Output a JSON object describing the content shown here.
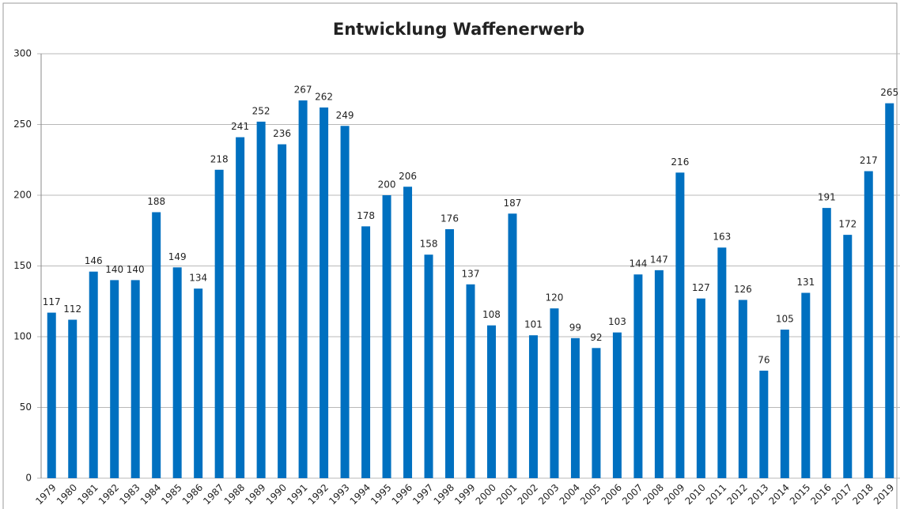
{
  "chart_data": {
    "type": "bar",
    "title": "Entwicklung Waffenerwerb",
    "categories": [
      "1979",
      "1980",
      "1981",
      "1982",
      "1983",
      "1984",
      "1985",
      "1986",
      "1987",
      "1988",
      "1989",
      "1990",
      "1991",
      "1992",
      "1993",
      "1994",
      "1995",
      "1996",
      "1997",
      "1998",
      "1999",
      "2000",
      "2001",
      "2002",
      "2003",
      "2004",
      "2005",
      "2006",
      "2007",
      "2008",
      "2009",
      "2010",
      "2011",
      "2012",
      "2013",
      "2014",
      "2015",
      "2016",
      "2017",
      "2018",
      "2019"
    ],
    "values": [
      117,
      112,
      146,
      140,
      140,
      188,
      149,
      134,
      218,
      241,
      252,
      236,
      267,
      262,
      249,
      178,
      200,
      206,
      158,
      176,
      137,
      108,
      187,
      101,
      120,
      99,
      92,
      103,
      144,
      147,
      216,
      127,
      163,
      126,
      76,
      105,
      131,
      191,
      172,
      217,
      265
    ],
    "color": "#0070c0",
    "ylim": [
      0,
      300
    ],
    "yticks": [
      0,
      50,
      100,
      150,
      200,
      250,
      300
    ],
    "grid": true
  }
}
